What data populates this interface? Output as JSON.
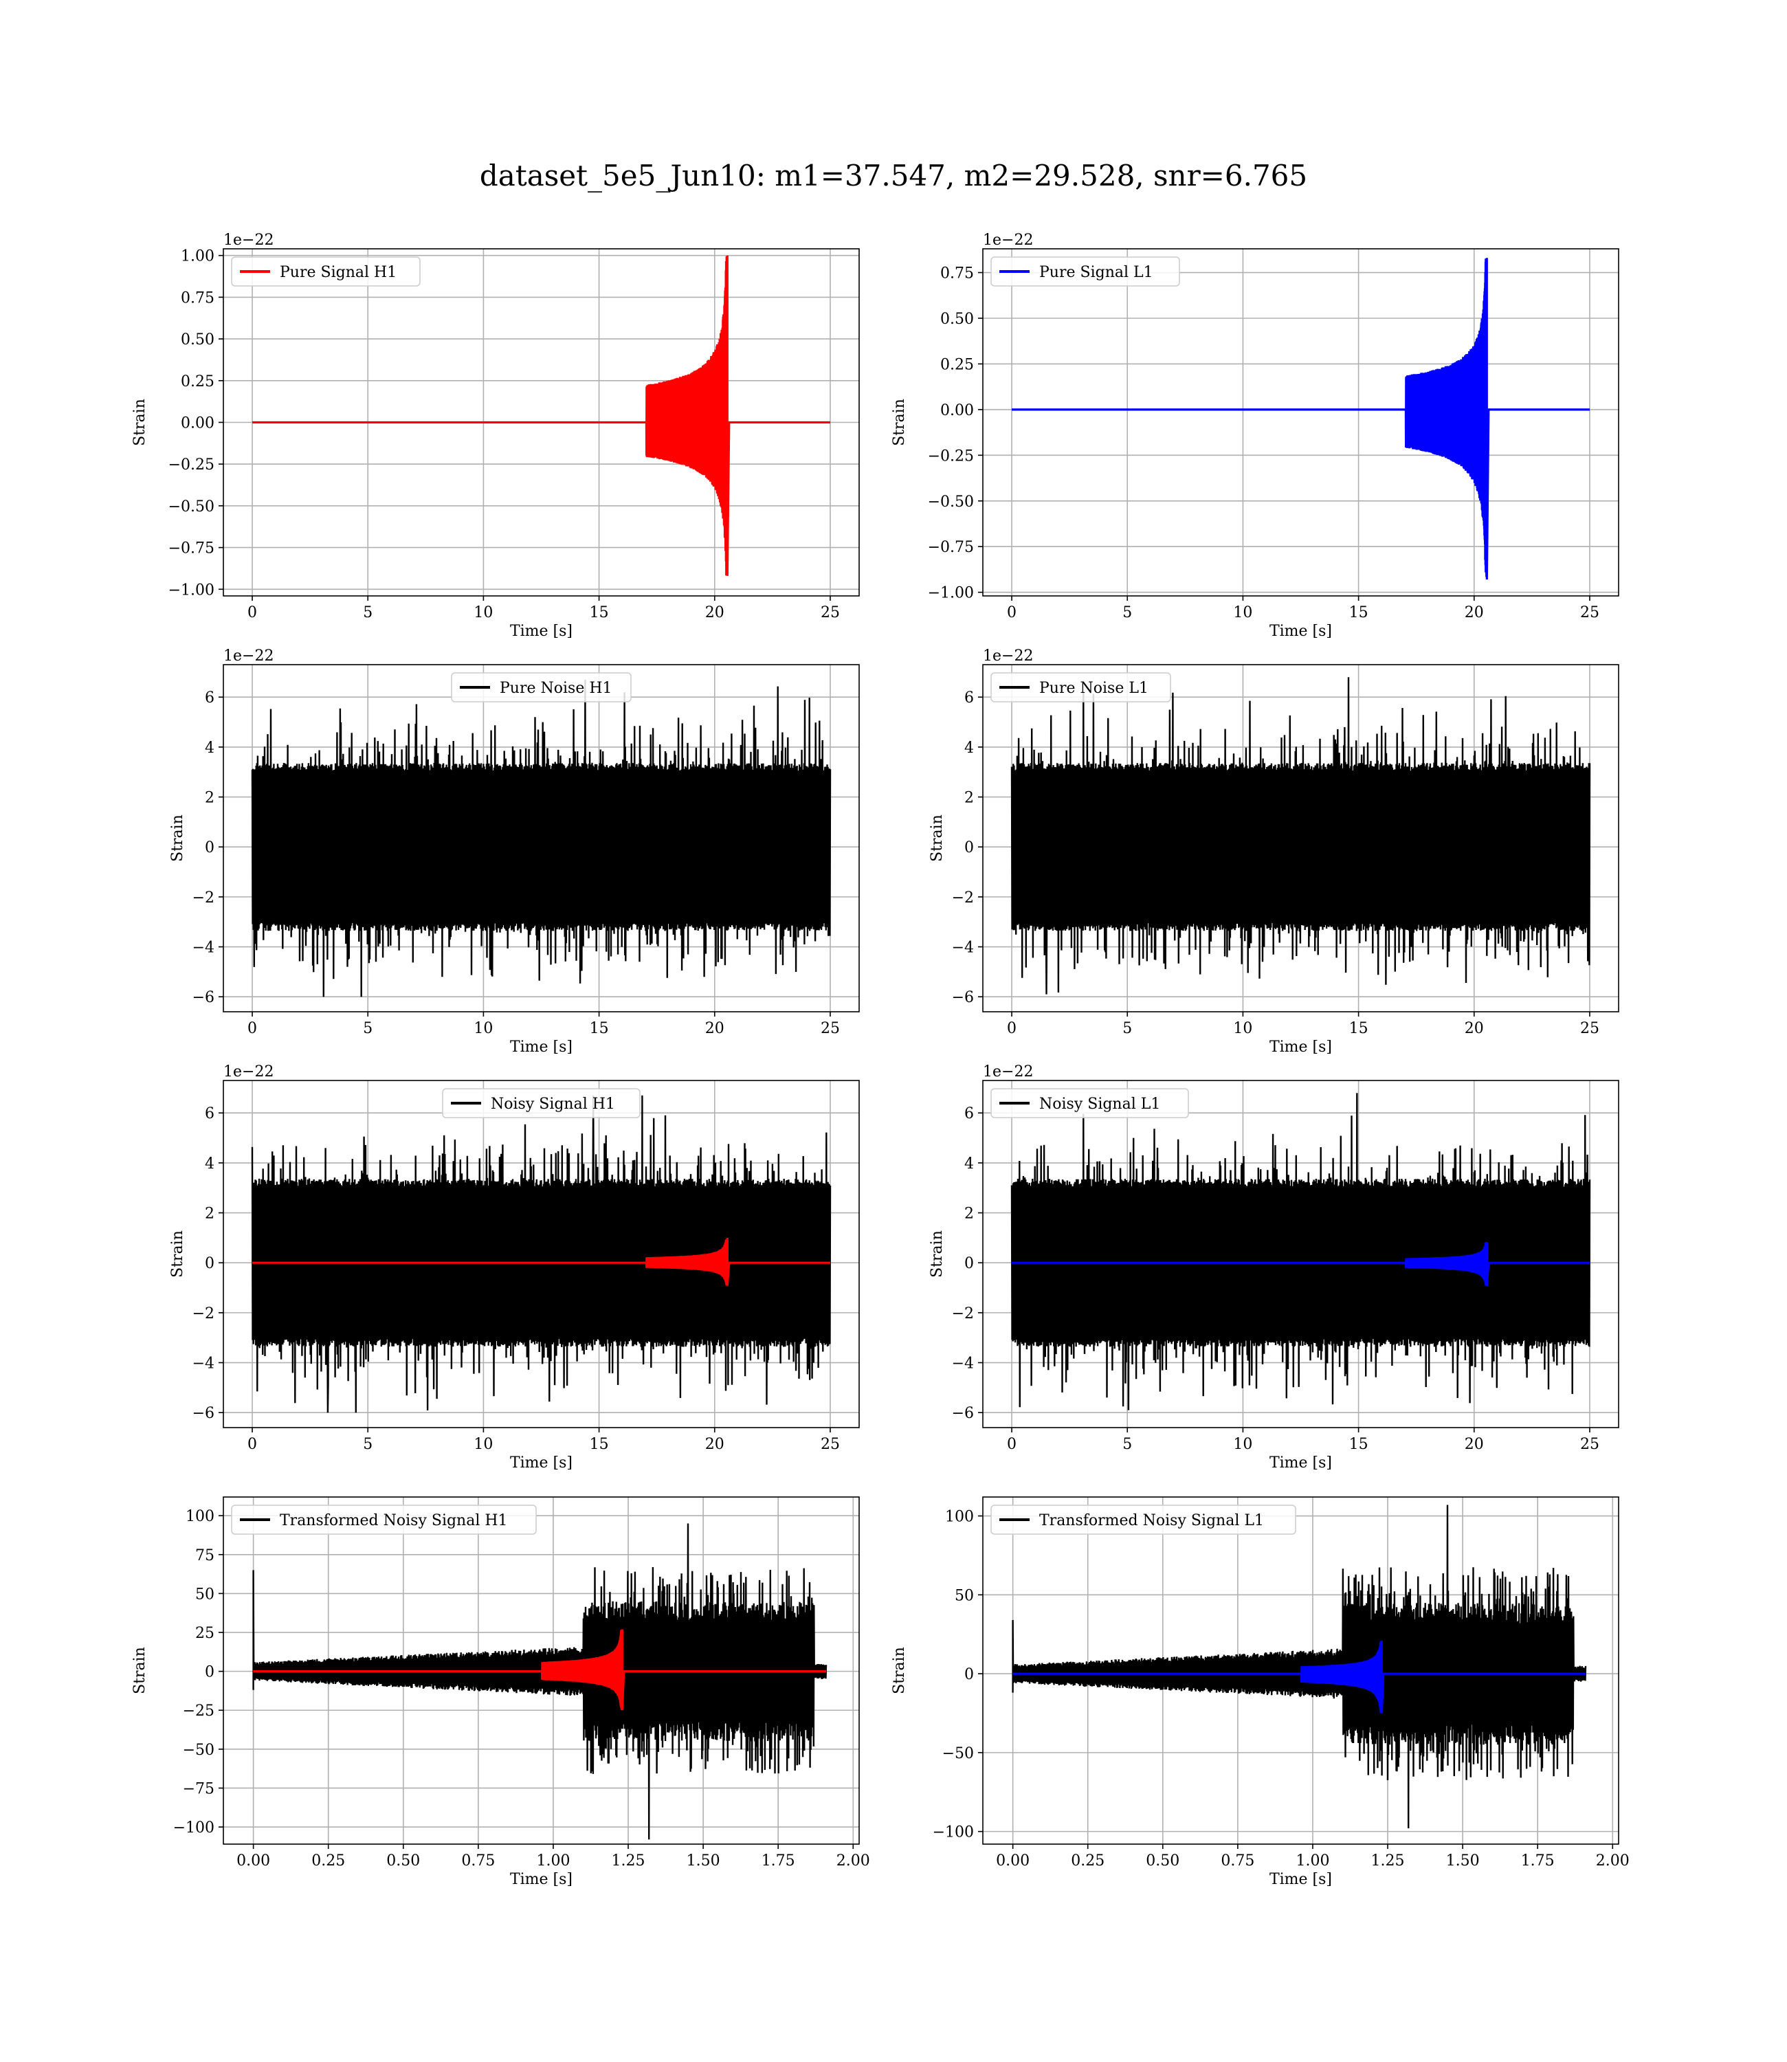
{
  "figure": {
    "title": "dataset_5e5_Jun10: m1=37.547, m2=29.528, snr=6.765"
  },
  "colors": {
    "h1": "#ff0000",
    "l1": "#0000ff",
    "noise": "#000000",
    "grid": "#b0b0b0"
  },
  "chart_data": [
    {
      "type": "line",
      "id": "pure-signal-h1",
      "xlabel": "Time [s]",
      "ylabel": "Strain",
      "offset_label": "1e−22",
      "xlim": [
        -1.25,
        26.25
      ],
      "ylim": [
        -1.04,
        1.04
      ],
      "xticks": [
        0,
        5,
        10,
        15,
        20,
        25
      ],
      "xtick_labels": [
        "0",
        "5",
        "10",
        "15",
        "20",
        "25"
      ],
      "yticks": [
        -1.0,
        -0.75,
        -0.5,
        -0.25,
        0.0,
        0.25,
        0.5,
        0.75,
        1.0
      ],
      "ytick_labels": [
        "−1.00",
        "−0.75",
        "−0.50",
        "−0.25",
        "0.00",
        "0.25",
        "0.50",
        "0.75",
        "1.00"
      ],
      "legend": {
        "position": "upper left",
        "entries": [
          {
            "label": "Pure Signal H1",
            "color": "#ff0000"
          }
        ]
      },
      "series": [
        {
          "name": "Pure Signal H1",
          "color": "#ff0000",
          "kind": "chirp",
          "x_range": [
            0,
            25
          ],
          "merger_time": 20.55,
          "peak": 1.0,
          "trough": -0.92
        }
      ]
    },
    {
      "type": "line",
      "id": "pure-signal-l1",
      "xlabel": "Time [s]",
      "ylabel": "Strain",
      "offset_label": "1e−22",
      "xlim": [
        -1.25,
        26.25
      ],
      "ylim": [
        -1.02,
        0.88
      ],
      "xticks": [
        0,
        5,
        10,
        15,
        20,
        25
      ],
      "xtick_labels": [
        "0",
        "5",
        "10",
        "15",
        "20",
        "25"
      ],
      "yticks": [
        -1.0,
        -0.75,
        -0.5,
        -0.25,
        0.0,
        0.25,
        0.5,
        0.75
      ],
      "ytick_labels": [
        "−1.00",
        "−0.75",
        "−0.50",
        "−0.25",
        "0.00",
        "0.25",
        "0.50",
        "0.75"
      ],
      "legend": {
        "position": "upper left",
        "entries": [
          {
            "label": "Pure Signal L1",
            "color": "#0000ff"
          }
        ]
      },
      "series": [
        {
          "name": "Pure Signal L1",
          "color": "#0000ff",
          "kind": "chirp",
          "x_range": [
            0,
            25
          ],
          "merger_time": 20.55,
          "peak": 0.83,
          "trough": -0.93
        }
      ]
    },
    {
      "type": "line",
      "id": "pure-noise-h1",
      "xlabel": "Time [s]",
      "ylabel": "Strain",
      "offset_label": "1e−22",
      "xlim": [
        -1.25,
        26.25
      ],
      "ylim": [
        -6.6,
        7.3
      ],
      "xticks": [
        0,
        5,
        10,
        15,
        20,
        25
      ],
      "xtick_labels": [
        "0",
        "5",
        "10",
        "15",
        "20",
        "25"
      ],
      "yticks": [
        -6,
        -4,
        -2,
        0,
        2,
        4,
        6
      ],
      "ytick_labels": [
        "−6",
        "−4",
        "−2",
        "0",
        "2",
        "4",
        "6"
      ],
      "legend": {
        "position": "upper center",
        "entries": [
          {
            "label": "Pure Noise H1",
            "color": "#000000"
          }
        ]
      },
      "series": [
        {
          "name": "Pure Noise H1",
          "color": "#000000",
          "kind": "noise",
          "x_range": [
            0,
            25
          ],
          "band": 3.3,
          "max": 6.7,
          "min": -6.0
        }
      ]
    },
    {
      "type": "line",
      "id": "pure-noise-l1",
      "xlabel": "Time [s]",
      "ylabel": "Strain",
      "offset_label": "1e−22",
      "xlim": [
        -1.25,
        26.25
      ],
      "ylim": [
        -6.6,
        7.3
      ],
      "xticks": [
        0,
        5,
        10,
        15,
        20,
        25
      ],
      "xtick_labels": [
        "0",
        "5",
        "10",
        "15",
        "20",
        "25"
      ],
      "yticks": [
        -6,
        -4,
        -2,
        0,
        2,
        4,
        6
      ],
      "ytick_labels": [
        "−6",
        "−4",
        "−2",
        "0",
        "2",
        "4",
        "6"
      ],
      "legend": {
        "position": "upper left",
        "entries": [
          {
            "label": "Pure Noise L1",
            "color": "#000000"
          }
        ]
      },
      "series": [
        {
          "name": "Pure Noise L1",
          "color": "#000000",
          "kind": "noise",
          "x_range": [
            0,
            25
          ],
          "band": 3.3,
          "max": 6.8,
          "min": -5.9
        }
      ]
    },
    {
      "type": "line",
      "id": "noisy-signal-h1",
      "xlabel": "Time [s]",
      "ylabel": "Strain",
      "offset_label": "1e−22",
      "xlim": [
        -1.25,
        26.25
      ],
      "ylim": [
        -6.6,
        7.3
      ],
      "xticks": [
        0,
        5,
        10,
        15,
        20,
        25
      ],
      "xtick_labels": [
        "0",
        "5",
        "10",
        "15",
        "20",
        "25"
      ],
      "yticks": [
        -6,
        -4,
        -2,
        0,
        2,
        4,
        6
      ],
      "ytick_labels": [
        "−6",
        "−4",
        "−2",
        "0",
        "2",
        "4",
        "6"
      ],
      "legend": {
        "position": "upper center",
        "entries": [
          {
            "label": "Noisy Signal H1",
            "color": "#000000"
          }
        ]
      },
      "series": [
        {
          "name": "Noisy Signal H1",
          "color": "#000000",
          "kind": "noise",
          "x_range": [
            0,
            25
          ],
          "band": 3.3,
          "max": 6.7,
          "min": -6.0
        },
        {
          "name": "Pure Signal H1",
          "color": "#ff0000",
          "kind": "chirp",
          "x_range": [
            0,
            25
          ],
          "merger_time": 20.55,
          "peak": 1.0,
          "trough": -0.92
        }
      ]
    },
    {
      "type": "line",
      "id": "noisy-signal-l1",
      "xlabel": "Time [s]",
      "ylabel": "Strain",
      "offset_label": "1e−22",
      "xlim": [
        -1.25,
        26.25
      ],
      "ylim": [
        -6.6,
        7.3
      ],
      "xticks": [
        0,
        5,
        10,
        15,
        20,
        25
      ],
      "xtick_labels": [
        "0",
        "5",
        "10",
        "15",
        "20",
        "25"
      ],
      "yticks": [
        -6,
        -4,
        -2,
        0,
        2,
        4,
        6
      ],
      "ytick_labels": [
        "−6",
        "−4",
        "−2",
        "0",
        "2",
        "4",
        "6"
      ],
      "legend": {
        "position": "upper left",
        "entries": [
          {
            "label": "Noisy Signal L1",
            "color": "#000000"
          }
        ]
      },
      "series": [
        {
          "name": "Noisy Signal L1",
          "color": "#000000",
          "kind": "noise",
          "x_range": [
            0,
            25
          ],
          "band": 3.3,
          "max": 6.8,
          "min": -5.9
        },
        {
          "name": "Pure Signal L1",
          "color": "#0000ff",
          "kind": "chirp",
          "x_range": [
            0,
            25
          ],
          "merger_time": 20.55,
          "peak": 0.83,
          "trough": -0.93
        }
      ]
    },
    {
      "type": "line",
      "id": "transformed-noisy-signal-h1",
      "xlabel": "Time [s]",
      "ylabel": "Strain",
      "offset_label": "",
      "xlim": [
        -0.1,
        2.02
      ],
      "ylim": [
        -111,
        112
      ],
      "xticks": [
        0,
        0.25,
        0.5,
        0.75,
        1.0,
        1.25,
        1.5,
        1.75,
        2.0
      ],
      "xtick_labels": [
        "0.00",
        "0.25",
        "0.50",
        "0.75",
        "1.00",
        "1.25",
        "1.50",
        "1.75",
        "2.00"
      ],
      "yticks": [
        -100,
        -75,
        -50,
        -25,
        0,
        25,
        50,
        75,
        100
      ],
      "ytick_labels": [
        "−100",
        "−75",
        "−50",
        "−25",
        "0",
        "25",
        "50",
        "75",
        "100"
      ],
      "legend": {
        "position": "upper left",
        "entries": [
          {
            "label": "Transformed Noisy Signal H1",
            "color": "#000000"
          }
        ]
      },
      "series": [
        {
          "name": "Transformed Noisy Signal H1",
          "color": "#000000",
          "kind": "whitened",
          "x_range": [
            0,
            1.91
          ],
          "onset": 1.1,
          "end": 1.87,
          "spike_start": 65,
          "max": 95,
          "min": -108
        },
        {
          "name": "Pure Signal H1",
          "color": "#ff0000",
          "kind": "chirp",
          "x_range": [
            0,
            1.91
          ],
          "merger_time": 1.23,
          "peak": 27,
          "trough": -25
        }
      ]
    },
    {
      "type": "line",
      "id": "transformed-noisy-signal-l1",
      "xlabel": "Time [s]",
      "ylabel": "Strain",
      "offset_label": "",
      "xlim": [
        -0.1,
        2.02
      ],
      "ylim": [
        -108,
        112
      ],
      "xticks": [
        0,
        0.25,
        0.5,
        0.75,
        1.0,
        1.25,
        1.5,
        1.75,
        2.0
      ],
      "xtick_labels": [
        "0.00",
        "0.25",
        "0.50",
        "0.75",
        "1.00",
        "1.25",
        "1.50",
        "1.75",
        "2.00"
      ],
      "yticks": [
        -100,
        -50,
        0,
        50,
        100
      ],
      "ytick_labels": [
        "−100",
        "−50",
        "0",
        "50",
        "100"
      ],
      "legend": {
        "position": "upper left",
        "entries": [
          {
            "label": "Transformed Noisy Signal L1",
            "color": "#000000"
          }
        ]
      },
      "series": [
        {
          "name": "Transformed Noisy Signal L1",
          "color": "#000000",
          "kind": "whitened",
          "x_range": [
            0,
            1.91
          ],
          "onset": 1.1,
          "end": 1.87,
          "spike_start": 34,
          "max": 107,
          "min": -98
        },
        {
          "name": "Pure Signal L1",
          "color": "#0000ff",
          "kind": "chirp",
          "x_range": [
            0,
            1.91
          ],
          "merger_time": 1.23,
          "peak": 21,
          "trough": -25
        }
      ]
    }
  ]
}
